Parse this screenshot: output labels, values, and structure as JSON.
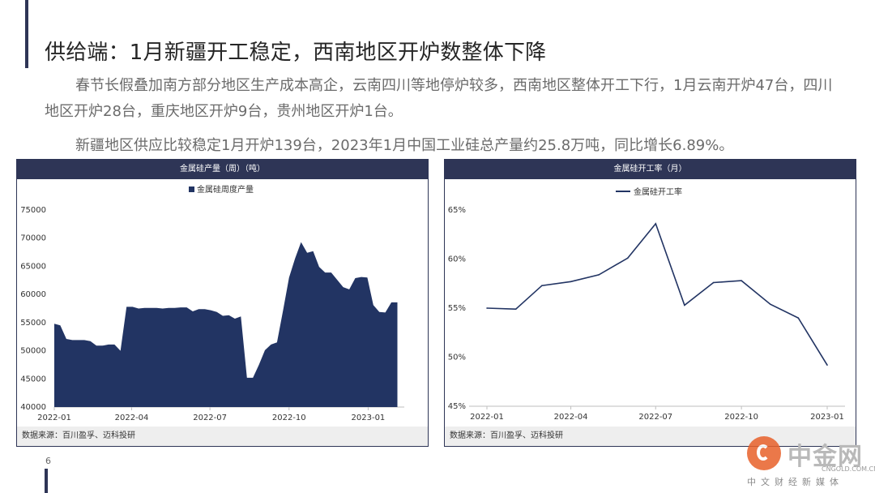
{
  "page": {
    "title": "供给端：1月新疆开工稳定，西南地区开炉数整体下降",
    "paragraph1": "春节长假叠加南方部分地区生产成本高企，云南四川等地停炉较多，西南地区整体开工下行，1月云南开炉47台，四川地区开炉28台，重庆地区开炉9台，贵州地区开炉1台。",
    "paragraph2": "新疆地区供应比较稳定1月开炉139台，2023年1月中国工业硅总产量约25.8万吨，同比增长6.89%。",
    "page_number": "6"
  },
  "colors": {
    "navy": "#223463",
    "header": "#2e3556"
  },
  "watermark": {
    "brand": "中金网",
    "url": "CNGOLD.COM.CN",
    "sub": "中文财经新媒体"
  },
  "chart_data": [
    {
      "type": "area",
      "title": "金属硅产量（周）（吨）",
      "legend": [
        "金属硅周度产量"
      ],
      "source": "数据来源：百川盈孚、迈科投研",
      "ylim": [
        40000,
        75000
      ],
      "yticks": [
        40000,
        45000,
        50000,
        55000,
        60000,
        65000,
        70000,
        75000
      ],
      "xticks": [
        "2022-01",
        "2022-04",
        "2022-07",
        "2022-10",
        "2023-01"
      ],
      "x_range": [
        "2022-01-01",
        "2023-02-12"
      ],
      "x": [
        "2022-01-01",
        "2022-01-08",
        "2022-01-15",
        "2022-01-22",
        "2022-01-29",
        "2022-02-05",
        "2022-02-12",
        "2022-02-19",
        "2022-02-26",
        "2022-03-05",
        "2022-03-12",
        "2022-03-19",
        "2022-03-26",
        "2022-04-02",
        "2022-04-09",
        "2022-04-16",
        "2022-04-23",
        "2022-04-30",
        "2022-05-07",
        "2022-05-14",
        "2022-05-21",
        "2022-05-28",
        "2022-06-04",
        "2022-06-11",
        "2022-06-18",
        "2022-06-25",
        "2022-07-02",
        "2022-07-09",
        "2022-07-16",
        "2022-07-23",
        "2022-07-30",
        "2022-08-06",
        "2022-08-13",
        "2022-08-20",
        "2022-08-27",
        "2022-09-03",
        "2022-09-10",
        "2022-09-17",
        "2022-09-24",
        "2022-10-01",
        "2022-10-08",
        "2022-10-15",
        "2022-10-22",
        "2022-10-29",
        "2022-11-05",
        "2022-11-12",
        "2022-11-19",
        "2022-11-26",
        "2022-12-03",
        "2022-12-10",
        "2022-12-17",
        "2022-12-24",
        "2022-12-31",
        "2023-01-07",
        "2023-01-14",
        "2023-01-21",
        "2023-01-28",
        "2023-02-04"
      ],
      "series": [
        {
          "name": "金属硅周度产量",
          "values": [
            54800,
            54500,
            52100,
            51900,
            51900,
            51900,
            51700,
            50900,
            50900,
            51100,
            51100,
            50000,
            57800,
            57800,
            57500,
            57600,
            57600,
            57600,
            57500,
            57600,
            57600,
            57700,
            57700,
            57000,
            57400,
            57400,
            57200,
            56900,
            56200,
            56300,
            55700,
            56100,
            45200,
            45200,
            47500,
            50100,
            51100,
            51500,
            57100,
            63000,
            66400,
            69300,
            67400,
            67700,
            64900,
            63900,
            63900,
            62600,
            61300,
            60900,
            62900,
            63100,
            63000,
            58100,
            56900,
            56800,
            58600,
            58600
          ]
        }
      ]
    },
    {
      "type": "line",
      "title": "金属硅开工率（月）",
      "legend": [
        "金属硅开工率"
      ],
      "source": "数据来源：百川盈孚、迈科投研",
      "ylim": [
        45,
        65
      ],
      "yticks": [
        "45%",
        "50%",
        "55%",
        "60%",
        "65%"
      ],
      "ytick_values": [
        45,
        50,
        55,
        60,
        65
      ],
      "xticks": [
        "2022-01",
        "2022-04",
        "2022-07",
        "2022-10",
        "2023-01"
      ],
      "x_range": [
        "2022-01-01",
        "2023-01-01"
      ],
      "x": [
        "2022-01",
        "2022-02",
        "2022-03",
        "2022-04",
        "2022-05",
        "2022-06",
        "2022-07",
        "2022-08",
        "2022-09",
        "2022-10",
        "2022-11",
        "2022-12",
        "2023-01"
      ],
      "series": [
        {
          "name": "金属硅开工率",
          "values": [
            55.0,
            54.9,
            57.3,
            57.7,
            58.4,
            60.1,
            63.6,
            55.3,
            57.6,
            57.8,
            55.4,
            54.0,
            49.2
          ]
        }
      ]
    }
  ]
}
